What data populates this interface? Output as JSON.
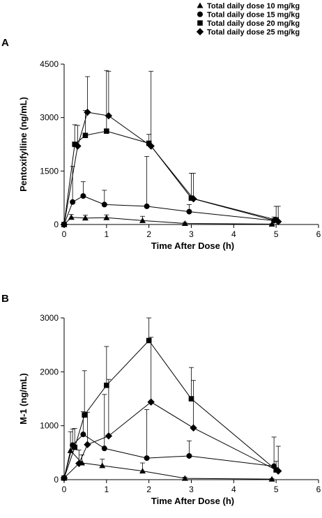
{
  "legend": {
    "entries": [
      {
        "marker": "triangle",
        "label": "Total daily dose 10 mg/kg"
      },
      {
        "marker": "circle",
        "label": "Total daily dose 15 mg/kg"
      },
      {
        "marker": "square",
        "label": "Total daily dose 20 mg/kg"
      },
      {
        "marker": "diamond",
        "label": "Total daily dose 25 mg/kg"
      }
    ]
  },
  "chart_data": [
    {
      "panel": "A",
      "type": "line",
      "xlabel": "Time After Dose (h)",
      "ylabel": "Pentoxifylline (ng/mL)",
      "xlim": [
        0,
        6
      ],
      "ylim": [
        0,
        4500
      ],
      "xticks": [
        "0",
        "1",
        "2",
        "3",
        "4",
        "5",
        "6"
      ],
      "yticks": [
        "0",
        "1500",
        "3000",
        "4500"
      ],
      "grid": false,
      "legend_position": "top-right",
      "series": [
        {
          "name": "Total daily dose 10 mg/kg",
          "marker": "triangle",
          "points": [
            {
              "x": 0,
              "y": 0
            },
            {
              "x": 0.17,
              "y": 200,
              "err": 80
            },
            {
              "x": 0.5,
              "y": 180,
              "err": 80
            },
            {
              "x": 1.0,
              "y": 190,
              "err": 80
            },
            {
              "x": 1.85,
              "y": 110,
              "err": 120
            },
            {
              "x": 2.85,
              "y": 30,
              "err": 30
            },
            {
              "x": 4.9,
              "y": 10,
              "err": 10
            }
          ]
        },
        {
          "name": "Total daily dose 15 mg/kg",
          "marker": "circle",
          "points": [
            {
              "x": 0,
              "y": 0
            },
            {
              "x": 0.2,
              "y": 630,
              "err": 1000
            },
            {
              "x": 0.45,
              "y": 800,
              "err": 400
            },
            {
              "x": 0.95,
              "y": 560,
              "err": 400
            },
            {
              "x": 1.95,
              "y": 510,
              "err": 1400
            },
            {
              "x": 2.95,
              "y": 360,
              "err": 200
            },
            {
              "x": 4.95,
              "y": 110,
              "err": 100
            }
          ]
        },
        {
          "name": "Total daily dose 20 mg/kg",
          "marker": "square",
          "points": [
            {
              "x": 0,
              "y": 0
            },
            {
              "x": 0.25,
              "y": 2250,
              "err": 550
            },
            {
              "x": 0.5,
              "y": 2500,
              "err": 700
            },
            {
              "x": 1.0,
              "y": 2620,
              "err": 1700
            },
            {
              "x": 2.0,
              "y": 2280,
              "err": 250
            },
            {
              "x": 3.0,
              "y": 740,
              "err": 700
            },
            {
              "x": 5.0,
              "y": 130,
              "err": 380
            }
          ]
        },
        {
          "name": "Total daily dose 25 mg/kg",
          "marker": "diamond",
          "points": [
            {
              "x": 0,
              "y": 0
            },
            {
              "x": 0.32,
              "y": 2200,
              "err": 580
            },
            {
              "x": 0.55,
              "y": 3150,
              "err": 1000
            },
            {
              "x": 1.05,
              "y": 3050,
              "err": 1250
            },
            {
              "x": 2.05,
              "y": 2200,
              "err": 2100
            },
            {
              "x": 3.05,
              "y": 720,
              "err": 720
            },
            {
              "x": 5.05,
              "y": 80,
              "err": 430
            }
          ]
        }
      ]
    },
    {
      "panel": "B",
      "type": "line",
      "xlabel": "Time After Dose (h)",
      "ylabel": "M-1 (ng/mL)",
      "xlim": [
        0,
        6
      ],
      "ylim": [
        0,
        3000
      ],
      "xticks": [
        "0",
        "1",
        "2",
        "3",
        "4",
        "5",
        "6"
      ],
      "yticks": [
        "0",
        "1000",
        "2000",
        "3000"
      ],
      "grid": false,
      "series": [
        {
          "name": "Total daily dose 10 mg/kg",
          "marker": "triangle",
          "points": [
            {
              "x": 0,
              "y": 30
            },
            {
              "x": 0.15,
              "y": 540,
              "err": 350
            },
            {
              "x": 0.42,
              "y": 310,
              "err": 150
            },
            {
              "x": 0.9,
              "y": 260,
              "err": 120
            },
            {
              "x": 1.85,
              "y": 160,
              "err": 150
            },
            {
              "x": 2.85,
              "y": 25,
              "err": 20
            },
            {
              "x": 4.9,
              "y": 10,
              "err": 10
            }
          ]
        },
        {
          "name": "Total daily dose 15 mg/kg",
          "marker": "circle",
          "points": [
            {
              "x": 0,
              "y": 30
            },
            {
              "x": 0.2,
              "y": 640,
              "err": 300
            },
            {
              "x": 0.45,
              "y": 840,
              "err": 420
            },
            {
              "x": 0.95,
              "y": 580,
              "err": 1000
            },
            {
              "x": 1.95,
              "y": 400,
              "err": 900
            },
            {
              "x": 2.95,
              "y": 440,
              "err": 280
            },
            {
              "x": 4.95,
              "y": 250,
              "err": 540
            }
          ]
        },
        {
          "name": "Total daily dose 20 mg/kg",
          "marker": "square",
          "points": [
            {
              "x": 0,
              "y": 30
            },
            {
              "x": 0.25,
              "y": 600,
              "err": 350
            },
            {
              "x": 0.48,
              "y": 1200,
              "err": 820
            },
            {
              "x": 1.0,
              "y": 1750,
              "err": 720
            },
            {
              "x": 2.0,
              "y": 2580,
              "err": 1250
            },
            {
              "x": 3.0,
              "y": 1500,
              "err": 580
            },
            {
              "x": 5.0,
              "y": 180,
              "err": 160
            }
          ]
        },
        {
          "name": "Total daily dose 25 mg/kg",
          "marker": "diamond",
          "points": [
            {
              "x": 0,
              "y": 30
            },
            {
              "x": 0.35,
              "y": 300,
              "err": 250
            },
            {
              "x": 0.55,
              "y": 650,
              "err": 600
            },
            {
              "x": 1.05,
              "y": 810,
              "err": 1050
            },
            {
              "x": 2.05,
              "y": 1440,
              "err": 1200
            },
            {
              "x": 3.05,
              "y": 960,
              "err": 880
            },
            {
              "x": 5.05,
              "y": 160,
              "err": 460
            }
          ]
        }
      ]
    }
  ]
}
